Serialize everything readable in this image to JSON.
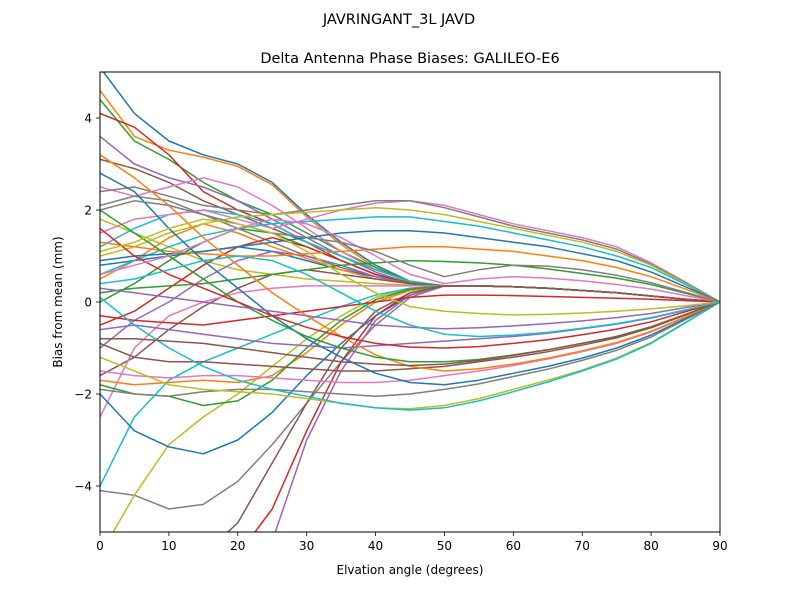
{
  "figure": {
    "suptitle": "JAVRINGANT_3L   JAVD"
  },
  "chart_data": {
    "type": "line",
    "title": "Delta Antenna Phase Biases: GALILEO-E6",
    "xlabel": "Elvation angle (degrees)",
    "ylabel": "Bias from mean (mm)",
    "xlim": [
      0,
      90
    ],
    "ylim": [
      -5,
      5
    ],
    "xticks": [
      0,
      10,
      20,
      30,
      40,
      50,
      60,
      70,
      80,
      90
    ],
    "yticks": [
      -4,
      -2,
      0,
      2,
      4
    ],
    "grid": false,
    "legend": "none",
    "x": [
      0,
      5,
      10,
      15,
      20,
      25,
      30,
      35,
      40,
      45,
      50,
      55,
      60,
      65,
      70,
      75,
      80,
      85,
      90
    ],
    "color_cycle": [
      "#1f77b4",
      "#ff7f0e",
      "#2ca02c",
      "#d62728",
      "#9467bd",
      "#8c564b",
      "#e377c2",
      "#7f7f7f",
      "#bcbd22",
      "#17becf"
    ],
    "series": [
      {
        "values": [
          5.1,
          4.1,
          3.5,
          3.2,
          3.0,
          2.6,
          1.9,
          1.3,
          0.8,
          0.45,
          0.35,
          0.35,
          0.33,
          0.3,
          0.25,
          0.2,
          0.13,
          0.06,
          0.0
        ]
      },
      {
        "values": [
          4.6,
          3.6,
          3.3,
          3.15,
          2.95,
          2.55,
          1.85,
          1.25,
          0.75,
          0.4,
          0.35,
          0.35,
          0.33,
          0.3,
          0.25,
          0.2,
          0.13,
          0.06,
          0.0
        ]
      },
      {
        "values": [
          4.4,
          3.5,
          3.1,
          2.6,
          2.2,
          1.9,
          1.5,
          1.1,
          0.75,
          0.45,
          0.35,
          0.35,
          0.33,
          0.3,
          0.25,
          0.2,
          0.13,
          0.06,
          0.0
        ]
      },
      {
        "values": [
          4.1,
          3.8,
          3.2,
          2.4,
          2.0,
          1.7,
          1.3,
          1.0,
          0.7,
          0.45,
          0.35,
          0.35,
          0.33,
          0.3,
          0.25,
          0.2,
          0.13,
          0.06,
          0.0
        ]
      },
      {
        "values": [
          3.6,
          3.0,
          2.7,
          2.5,
          2.2,
          1.8,
          1.4,
          1.0,
          0.65,
          0.4,
          0.35,
          0.35,
          0.33,
          0.3,
          0.25,
          0.2,
          0.13,
          0.06,
          0.0
        ]
      },
      {
        "values": [
          3.1,
          2.9,
          2.6,
          2.2,
          1.9,
          1.6,
          1.3,
          0.9,
          0.6,
          0.4,
          0.35,
          0.35,
          0.33,
          0.3,
          0.25,
          0.2,
          0.13,
          0.06,
          0.0
        ]
      },
      {
        "values": [
          2.5,
          2.3,
          2.5,
          2.7,
          2.5,
          2.1,
          1.6,
          1.1,
          0.7,
          0.45,
          0.35,
          0.35,
          0.33,
          0.3,
          0.25,
          0.2,
          0.13,
          0.06,
          0.0
        ]
      },
      {
        "values": [
          2.1,
          2.3,
          2.2,
          1.9,
          1.6,
          1.3,
          1.0,
          0.75,
          0.55,
          0.4,
          0.35,
          0.35,
          0.33,
          0.3,
          0.25,
          0.2,
          0.13,
          0.06,
          0.0
        ]
      },
      {
        "values": [
          1.8,
          1.5,
          1.2,
          0.9,
          0.7,
          0.6,
          0.5,
          0.45,
          0.4,
          0.37,
          0.35,
          0.35,
          0.33,
          0.3,
          0.25,
          0.2,
          0.13,
          0.06,
          0.0
        ]
      },
      {
        "values": [
          1.2,
          1.6,
          1.9,
          2.0,
          1.9,
          1.7,
          1.3,
          1.0,
          0.7,
          0.45,
          0.35,
          0.35,
          0.33,
          0.3,
          0.25,
          0.2,
          0.13,
          0.06,
          0.0
        ]
      },
      {
        "values": [
          0.8,
          0.9,
          1.0,
          1.1,
          1.2,
          1.1,
          0.9,
          0.7,
          0.55,
          0.4,
          0.35,
          0.35,
          0.33,
          0.3,
          0.25,
          0.2,
          0.13,
          0.06,
          0.0
        ]
      },
      {
        "values": [
          0.5,
          0.9,
          1.4,
          1.7,
          1.5,
          1.2,
          0.95,
          0.7,
          0.5,
          0.4,
          0.35,
          0.35,
          0.33,
          0.3,
          0.25,
          0.2,
          0.13,
          0.06,
          0.0
        ]
      },
      {
        "values": [
          0.0,
          0.4,
          0.9,
          1.3,
          1.6,
          1.5,
          1.2,
          0.9,
          0.6,
          0.42,
          0.35,
          0.35,
          0.33,
          0.3,
          0.25,
          0.2,
          0.13,
          0.06,
          0.0
        ]
      },
      {
        "values": [
          -0.5,
          -0.2,
          0.3,
          0.8,
          1.2,
          1.4,
          1.2,
          0.9,
          0.6,
          0.4,
          0.35,
          0.35,
          0.33,
          0.3,
          0.25,
          0.2,
          0.13,
          0.06,
          0.0
        ]
      },
      {
        "values": [
          -1.0,
          -0.4,
          0.0,
          0.5,
          0.9,
          1.1,
          1.0,
          0.8,
          0.55,
          0.4,
          0.35,
          0.35,
          0.33,
          0.3,
          0.25,
          0.2,
          0.13,
          0.06,
          0.0
        ]
      },
      {
        "values": [
          -1.6,
          -1.2,
          -0.6,
          -0.1,
          0.3,
          0.6,
          0.7,
          0.6,
          0.5,
          0.4,
          0.35,
          0.35,
          0.33,
          0.3,
          0.25,
          0.2,
          0.13,
          0.06,
          0.0
        ]
      },
      {
        "values": [
          -2.5,
          -1.0,
          -0.3,
          0.0,
          0.2,
          0.3,
          0.35,
          0.35,
          0.35,
          0.35,
          0.35,
          0.35,
          0.33,
          0.3,
          0.25,
          0.2,
          0.13,
          0.06,
          0.0
        ]
      },
      {
        "values": [
          -4.1,
          -4.2,
          -4.5,
          -4.4,
          -3.9,
          -3.1,
          -2.2,
          -1.3,
          -0.5,
          0.1,
          0.35,
          0.35,
          0.33,
          0.3,
          0.25,
          0.2,
          0.13,
          0.06,
          0.0
        ]
      },
      {
        "values": [
          -5.5,
          -4.2,
          -3.1,
          -2.5,
          -2.0,
          -1.4,
          -0.8,
          -0.3,
          0.1,
          0.3,
          0.35,
          0.35,
          0.33,
          0.3,
          0.25,
          0.2,
          0.13,
          0.06,
          0.0
        ]
      },
      {
        "values": [
          -4.0,
          -2.5,
          -1.7,
          -1.3,
          -1.0,
          -0.7,
          -0.4,
          -0.1,
          0.15,
          0.3,
          0.35,
          0.35,
          0.33,
          0.3,
          0.25,
          0.2,
          0.13,
          0.06,
          0.0
        ]
      },
      {
        "values": [
          -2.0,
          -2.8,
          -3.15,
          -3.3,
          -3.0,
          -2.4,
          -1.6,
          -0.9,
          -0.3,
          0.15,
          0.35,
          0.35,
          0.33,
          0.3,
          0.25,
          0.2,
          0.13,
          0.06,
          0.0
        ]
      },
      {
        "values": [
          -1.7,
          -1.8,
          -1.75,
          -1.7,
          -1.75,
          -1.6,
          -1.1,
          -0.5,
          0.0,
          0.25,
          0.35,
          0.35,
          0.33,
          0.3,
          0.25,
          0.2,
          0.13,
          0.06,
          0.0
        ]
      },
      {
        "values": [
          -1.8,
          -2.0,
          -2.05,
          -2.25,
          -2.15,
          -1.7,
          -1.0,
          -0.4,
          0.05,
          0.28,
          0.35,
          0.35,
          0.33,
          0.3,
          0.25,
          0.2,
          0.13,
          0.06,
          0.0
        ]
      },
      {
        "values": [
          -5.5,
          -5.5,
          -5.5,
          -5.5,
          -5.5,
          -4.5,
          -2.8,
          -1.3,
          -0.3,
          0.2,
          0.35,
          0.35,
          0.33,
          0.3,
          0.25,
          0.2,
          0.13,
          0.06,
          0.0
        ]
      },
      {
        "values": [
          -5.5,
          -5.5,
          -5.5,
          -5.5,
          -5.5,
          -5.2,
          -3.0,
          -1.5,
          -0.4,
          0.15,
          0.35,
          0.35,
          0.33,
          0.3,
          0.25,
          0.2,
          0.13,
          0.06,
          0.0
        ]
      },
      {
        "values": [
          -5.5,
          -5.5,
          -5.5,
          -5.5,
          -4.8,
          -3.5,
          -2.2,
          -1.0,
          -0.2,
          0.2,
          0.35,
          0.35,
          0.33,
          0.3,
          0.25,
          0.2,
          0.13,
          0.06,
          0.0
        ]
      },
      {
        "values": [
          1.5,
          1.8,
          1.9,
          2.0,
          1.8,
          1.6,
          1.8,
          2.0,
          2.15,
          2.2,
          2.1,
          1.9,
          1.7,
          1.55,
          1.4,
          1.2,
          0.85,
          0.43,
          0.0
        ]
      },
      {
        "values": [
          2.4,
          2.5,
          2.3,
          2.1,
          2.0,
          1.9,
          2.0,
          2.1,
          2.2,
          2.2,
          2.05,
          1.85,
          1.65,
          1.5,
          1.35,
          1.15,
          0.82,
          0.42,
          0.0
        ]
      },
      {
        "values": [
          1.0,
          1.2,
          1.5,
          1.7,
          1.85,
          1.9,
          1.95,
          2.0,
          2.05,
          2.0,
          1.9,
          1.75,
          1.6,
          1.45,
          1.3,
          1.1,
          0.8,
          0.4,
          0.0
        ]
      },
      {
        "values": [
          0.6,
          0.9,
          1.2,
          1.45,
          1.6,
          1.7,
          1.75,
          1.8,
          1.85,
          1.85,
          1.75,
          1.65,
          1.5,
          1.35,
          1.2,
          1.0,
          0.75,
          0.38,
          0.0
        ]
      },
      {
        "values": [
          0.9,
          1.0,
          1.05,
          1.1,
          1.2,
          1.3,
          1.4,
          1.5,
          1.55,
          1.55,
          1.5,
          1.4,
          1.3,
          1.2,
          1.05,
          0.9,
          0.65,
          0.33,
          0.0
        ]
      },
      {
        "values": [
          1.3,
          1.2,
          1.1,
          1.05,
          1.0,
          1.0,
          1.05,
          1.1,
          1.15,
          1.2,
          1.2,
          1.15,
          1.1,
          1.0,
          0.9,
          0.75,
          0.55,
          0.28,
          0.0
        ]
      },
      {
        "values": [
          0.2,
          0.3,
          0.35,
          0.4,
          0.5,
          0.6,
          0.7,
          0.8,
          0.85,
          0.9,
          0.88,
          0.85,
          0.8,
          0.72,
          0.62,
          0.52,
          0.38,
          0.19,
          0.0
        ]
      },
      {
        "values": [
          -0.3,
          -0.4,
          -0.45,
          -0.5,
          -0.4,
          -0.3,
          -0.2,
          -0.1,
          0.0,
          0.1,
          0.15,
          0.15,
          0.14,
          0.12,
          0.1,
          0.08,
          0.06,
          0.03,
          0.0
        ]
      },
      {
        "values": [
          -0.6,
          -0.5,
          -0.6,
          -0.7,
          -0.8,
          -0.9,
          -0.95,
          -1.0,
          -0.95,
          -0.9,
          -0.85,
          -0.8,
          -0.75,
          -0.68,
          -0.58,
          -0.48,
          -0.35,
          -0.18,
          0.0
        ]
      },
      {
        "values": [
          -0.9,
          -1.2,
          -1.3,
          -1.3,
          -1.35,
          -1.4,
          -1.45,
          -1.5,
          -1.5,
          -1.45,
          -1.4,
          -1.3,
          -1.2,
          -1.08,
          -0.94,
          -0.78,
          -0.56,
          -0.28,
          0.0
        ]
      },
      {
        "values": [
          -1.5,
          -1.6,
          -1.65,
          -1.6,
          -1.6,
          -1.65,
          -1.7,
          -1.75,
          -1.75,
          -1.7,
          -1.6,
          -1.5,
          -1.38,
          -1.24,
          -1.08,
          -0.9,
          -0.65,
          -0.33,
          0.0
        ]
      },
      {
        "values": [
          -1.9,
          -2.0,
          -2.05,
          -1.95,
          -1.9,
          -1.9,
          -1.95,
          -2.0,
          -2.05,
          -2.0,
          -1.9,
          -1.78,
          -1.62,
          -1.46,
          -1.27,
          -1.05,
          -0.76,
          -0.38,
          0.0
        ]
      },
      {
        "values": [
          -1.2,
          -1.5,
          -1.8,
          -1.9,
          -1.95,
          -2.0,
          -2.1,
          -2.2,
          -2.3,
          -2.32,
          -2.25,
          -2.1,
          -1.9,
          -1.7,
          -1.48,
          -1.22,
          -0.88,
          -0.44,
          0.0
        ]
      },
      {
        "values": [
          0.1,
          -0.5,
          -1.0,
          -1.4,
          -1.7,
          -1.9,
          -2.05,
          -2.2,
          -2.3,
          -2.35,
          -2.3,
          -2.15,
          -1.95,
          -1.74,
          -1.5,
          -1.24,
          -0.9,
          -0.45,
          0.0
        ]
      },
      {
        "values": [
          2.8,
          2.4,
          1.6,
          0.9,
          0.3,
          -0.3,
          -0.8,
          -1.2,
          -1.55,
          -1.75,
          -1.8,
          -1.7,
          -1.55,
          -1.4,
          -1.22,
          -1.0,
          -0.72,
          -0.36,
          0.0
        ]
      },
      {
        "values": [
          3.2,
          2.7,
          2.1,
          1.4,
          0.8,
          0.2,
          -0.3,
          -0.75,
          -1.15,
          -1.4,
          -1.5,
          -1.45,
          -1.35,
          -1.22,
          -1.06,
          -0.88,
          -0.64,
          -0.32,
          0.0
        ]
      },
      {
        "values": [
          2.0,
          1.5,
          1.0,
          0.5,
          0.0,
          -0.4,
          -0.75,
          -1.0,
          -1.2,
          -1.3,
          -1.3,
          -1.25,
          -1.15,
          -1.04,
          -0.9,
          -0.75,
          -0.54,
          -0.27,
          0.0
        ]
      },
      {
        "values": [
          1.6,
          1.0,
          0.6,
          0.3,
          0.0,
          -0.3,
          -0.55,
          -0.75,
          -0.9,
          -0.98,
          -1.0,
          -0.97,
          -0.9,
          -0.82,
          -0.71,
          -0.59,
          -0.43,
          -0.21,
          0.0
        ]
      },
      {
        "values": [
          0.3,
          0.2,
          0.1,
          0.0,
          -0.1,
          -0.2,
          -0.3,
          -0.4,
          -0.5,
          -0.55,
          -0.58,
          -0.56,
          -0.52,
          -0.47,
          -0.41,
          -0.34,
          -0.25,
          -0.12,
          0.0
        ]
      },
      {
        "values": [
          -0.8,
          -0.8,
          -0.85,
          -0.9,
          -1.0,
          -1.1,
          -1.2,
          -1.3,
          -1.35,
          -1.38,
          -1.35,
          -1.27,
          -1.16,
          -1.04,
          -0.9,
          -0.75,
          -0.54,
          -0.27,
          0.0
        ]
      },
      {
        "values": [
          0.6,
          0.8,
          1.0,
          1.3,
          1.6,
          1.8,
          1.7,
          1.4,
          1.0,
          0.6,
          0.4,
          0.5,
          0.55,
          0.52,
          0.46,
          0.38,
          0.28,
          0.14,
          0.0
        ]
      },
      {
        "values": [
          2.0,
          2.2,
          2.1,
          1.9,
          1.7,
          1.5,
          1.4,
          1.3,
          1.1,
          0.8,
          0.55,
          0.7,
          0.8,
          0.78,
          0.7,
          0.58,
          0.42,
          0.21,
          0.0
        ]
      },
      {
        "values": [
          1.1,
          1.3,
          1.6,
          1.8,
          1.7,
          1.5,
          1.1,
          0.6,
          0.2,
          -0.1,
          -0.2,
          -0.25,
          -0.28,
          -0.27,
          -0.24,
          -0.2,
          -0.15,
          -0.08,
          0.0
        ]
      },
      {
        "values": [
          0.4,
          0.5,
          0.7,
          0.9,
          1.0,
          0.9,
          0.6,
          0.2,
          -0.2,
          -0.5,
          -0.7,
          -0.75,
          -0.72,
          -0.66,
          -0.57,
          -0.47,
          -0.34,
          -0.17,
          0.0
        ]
      }
    ]
  }
}
